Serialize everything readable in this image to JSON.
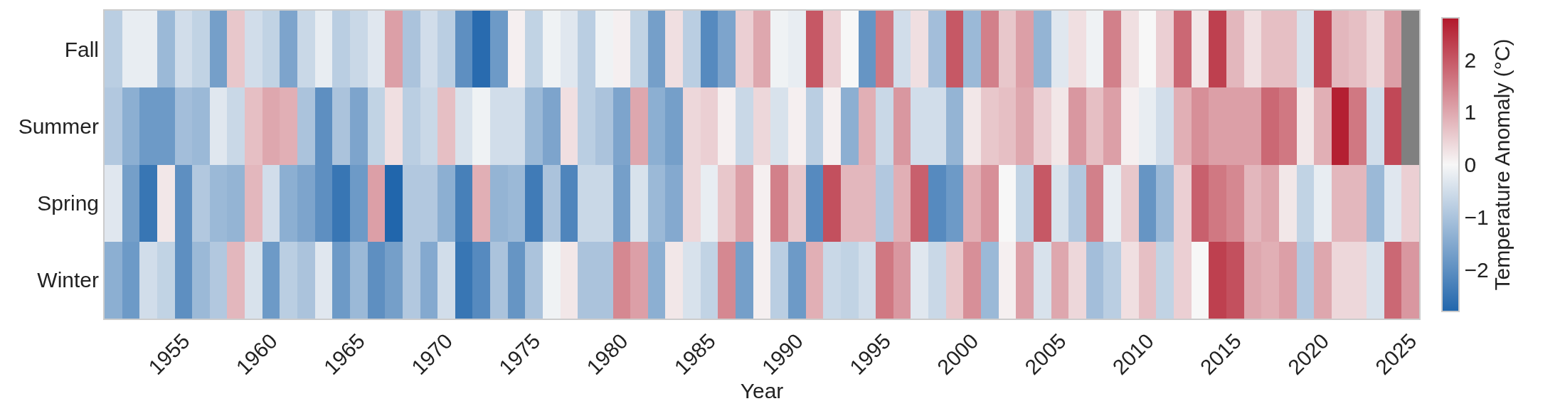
{
  "chart_data": {
    "type": "heatmap",
    "xlabel": "Year",
    "clabel": "Temperature Anomaly (°C)",
    "x": [
      1951,
      1952,
      1953,
      1954,
      1955,
      1956,
      1957,
      1958,
      1959,
      1960,
      1961,
      1962,
      1963,
      1964,
      1965,
      1966,
      1967,
      1968,
      1969,
      1970,
      1971,
      1972,
      1973,
      1974,
      1975,
      1976,
      1977,
      1978,
      1979,
      1980,
      1981,
      1982,
      1983,
      1984,
      1985,
      1986,
      1987,
      1988,
      1989,
      1990,
      1991,
      1992,
      1993,
      1994,
      1995,
      1996,
      1997,
      1998,
      1999,
      2000,
      2001,
      2002,
      2003,
      2004,
      2005,
      2006,
      2007,
      2008,
      2009,
      2010,
      2011,
      2012,
      2013,
      2014,
      2015,
      2016,
      2017,
      2018,
      2019,
      2020,
      2021,
      2022,
      2023,
      2024,
      2025
    ],
    "y_categories": [
      "Fall",
      "Summer",
      "Spring",
      "Winter"
    ],
    "cells": [
      [
        -0.8,
        -0.2,
        -0.2,
        -1.2,
        -0.5,
        -0.7,
        -1.7,
        0.6,
        -0.5,
        -0.7,
        -1.6,
        -0.6,
        -0.2,
        -0.8,
        -0.6,
        -0.3,
        1.1,
        -1.0,
        -0.5,
        -0.8,
        -2.0,
        -2.7,
        -1.8,
        0.1,
        -0.7,
        -0.1,
        -0.3,
        -0.8,
        -0.1,
        0.1,
        -0.7,
        -1.7,
        0.3,
        -0.8,
        -2.1,
        -1.6,
        0.5,
        1.0,
        -0.1,
        -0.2,
        2.0,
        0.5,
        0.0,
        -1.9,
        1.6,
        -0.5,
        0.3,
        -1.1,
        2.0,
        -1.2,
        1.5,
        0.6,
        1.1,
        -1.3,
        -0.3,
        0.3,
        -0.1,
        1.5,
        0.3,
        0.0,
        0.5,
        1.8,
        0.2,
        2.3,
        0.8,
        0.3,
        0.7,
        0.7,
        -0.4,
        2.2,
        0.8,
        0.7,
        0.4,
        1.1,
        null
      ],
      [
        -0.9,
        -1.4,
        -1.8,
        -1.8,
        -1.1,
        -1.2,
        -0.3,
        -0.6,
        0.7,
        1.0,
        0.9,
        -1.0,
        -2.0,
        -1.0,
        -1.6,
        -0.7,
        0.3,
        -0.8,
        -0.6,
        0.7,
        -0.4,
        -0.1,
        -0.5,
        -0.5,
        -1.2,
        -1.6,
        0.3,
        -0.8,
        -1.0,
        -1.6,
        1.0,
        -1.4,
        -1.7,
        0.4,
        0.5,
        0.1,
        -0.6,
        0.4,
        -0.4,
        0.1,
        -0.8,
        0.1,
        -1.4,
        0.9,
        -0.6,
        1.2,
        -0.5,
        -0.5,
        -1.3,
        0.2,
        0.6,
        0.7,
        1.0,
        0.5,
        0.2,
        1.2,
        0.7,
        1.1,
        0.1,
        -0.2,
        -0.5,
        0.9,
        1.3,
        1.1,
        1.1,
        1.1,
        1.8,
        1.6,
        0.2,
        0.9,
        2.7,
        1.6,
        -0.5,
        2.2,
        null
      ],
      [
        -0.3,
        -1.7,
        -2.5,
        0.2,
        -2.0,
        -0.9,
        -1.2,
        -1.3,
        0.8,
        -0.5,
        -1.4,
        -1.6,
        -2.0,
        -2.5,
        -1.8,
        1.1,
        -2.8,
        -0.9,
        -0.9,
        -1.4,
        -2.3,
        0.9,
        -1.3,
        -1.2,
        -2.4,
        -1.0,
        -2.2,
        -0.6,
        -0.6,
        -1.7,
        -0.4,
        -1.2,
        -1.5,
        0.4,
        -0.2,
        0.6,
        1.1,
        0.1,
        1.5,
        0.6,
        -2.1,
        2.1,
        0.8,
        0.8,
        -0.9,
        0.9,
        1.9,
        -2.1,
        -1.8,
        0.9,
        1.3,
        0.0,
        -0.7,
        2.0,
        -0.4,
        -0.9,
        1.5,
        -0.2,
        0.6,
        -1.9,
        -1.2,
        0.5,
        1.9,
        1.6,
        1.4,
        0.8,
        1.0,
        0.2,
        -0.7,
        -0.2,
        0.8,
        0.8,
        -1.2,
        -0.3,
        0.5
      ],
      [
        -1.4,
        -1.8,
        -0.5,
        -0.7,
        -2.0,
        -1.2,
        -0.9,
        0.8,
        -0.4,
        -1.8,
        -0.8,
        -1.0,
        -0.3,
        -1.8,
        -1.2,
        -2.0,
        -1.7,
        -0.9,
        -1.5,
        -0.5,
        -2.5,
        -2.1,
        -1.0,
        -1.9,
        -1.0,
        -0.1,
        0.2,
        -1.0,
        -1.0,
        1.4,
        1.1,
        -1.4,
        0.2,
        -0.4,
        -0.7,
        1.4,
        -1.7,
        0.1,
        -0.8,
        -1.8,
        0.9,
        -0.6,
        -0.7,
        -0.5,
        1.6,
        1.2,
        -0.3,
        -0.6,
        0.6,
        1.3,
        -1.2,
        0.1,
        1.1,
        -0.4,
        1.0,
        0.4,
        -1.1,
        -0.8,
        0.3,
        0.7,
        -0.7,
        0.5,
        0.0,
        2.3,
        2.1,
        1.0,
        0.9,
        1.1,
        -0.9,
        1.0,
        0.4,
        0.4,
        -0.4,
        1.8,
        1.2
      ]
    ],
    "xlim": [
      1950.5,
      2025.5
    ],
    "xticks": [
      1955,
      1960,
      1965,
      1970,
      1975,
      1980,
      1985,
      1990,
      1995,
      2000,
      2005,
      2010,
      2015,
      2020,
      2025
    ],
    "clim": [
      -2.8,
      2.8
    ],
    "cticks": [
      {
        "value": -2,
        "label": "−2"
      },
      {
        "value": -1,
        "label": "−1"
      },
      0,
      1,
      2
    ],
    "colors": [
      "#2166ac",
      "#f7f7f7",
      "#b2182b"
    ],
    "grid": false
  }
}
